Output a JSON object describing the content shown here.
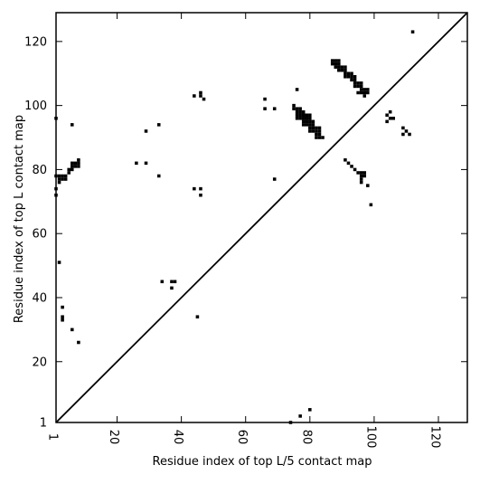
{
  "chart_data": {
    "type": "scatter",
    "title": "",
    "xlabel": "Residue index of top L/5 contact map",
    "ylabel": "Residue index of top L contact map",
    "xlim": [
      1,
      129
    ],
    "ylim": [
      1,
      129
    ],
    "xticks": [
      1,
      20,
      40,
      60,
      80,
      100,
      120
    ],
    "yticks": [
      1,
      20,
      40,
      60,
      80,
      100,
      120
    ],
    "x_tick_labels": [
      "1",
      "20",
      "40",
      "60",
      "80",
      "100",
      "120"
    ],
    "y_tick_labels": [
      "1",
      "20",
      "40",
      "60",
      "80",
      "100",
      "120"
    ],
    "diagonal": true,
    "grid": false,
    "marker": "square",
    "color": "#000000",
    "series": [
      {
        "points": [
          [
            1,
            96
          ],
          [
            1,
            78
          ],
          [
            2,
            78
          ],
          [
            2,
            77
          ],
          [
            2,
            76
          ],
          [
            3,
            78
          ],
          [
            3,
            77
          ],
          [
            4,
            78
          ],
          [
            4,
            77
          ],
          [
            1,
            74
          ],
          [
            1,
            72
          ],
          [
            2,
            51
          ],
          [
            3,
            37
          ],
          [
            3,
            34
          ],
          [
            3,
            33
          ],
          [
            5,
            79
          ],
          [
            5,
            80
          ],
          [
            6,
            80
          ],
          [
            6,
            81
          ],
          [
            6,
            82
          ],
          [
            7,
            81
          ],
          [
            7,
            82
          ],
          [
            8,
            83
          ],
          [
            8,
            82
          ],
          [
            8,
            81
          ],
          [
            6,
            94
          ],
          [
            6,
            30
          ],
          [
            8,
            26
          ],
          [
            26,
            82
          ],
          [
            29,
            82
          ],
          [
            29,
            92
          ],
          [
            33,
            94
          ],
          [
            33,
            78
          ],
          [
            34,
            45
          ],
          [
            37,
            45
          ],
          [
            38,
            45
          ],
          [
            37,
            43
          ],
          [
            44,
            103
          ],
          [
            44,
            74
          ],
          [
            45,
            34
          ],
          [
            46,
            104
          ],
          [
            46,
            103
          ],
          [
            46,
            74
          ],
          [
            46,
            72
          ],
          [
            47,
            102
          ],
          [
            66,
            102
          ],
          [
            66,
            99
          ],
          [
            69,
            99
          ],
          [
            69,
            77
          ],
          [
            74,
            1
          ],
          [
            75,
            99
          ],
          [
            75,
            100
          ],
          [
            76,
            105
          ],
          [
            76,
            99
          ],
          [
            77,
            99
          ],
          [
            76,
            98
          ],
          [
            77,
            98
          ],
          [
            78,
            98
          ],
          [
            76,
            97
          ],
          [
            77,
            97
          ],
          [
            78,
            97
          ],
          [
            79,
            97
          ],
          [
            80,
            97
          ],
          [
            76,
            96
          ],
          [
            77,
            96
          ],
          [
            78,
            96
          ],
          [
            79,
            96
          ],
          [
            80,
            96
          ],
          [
            78,
            95
          ],
          [
            79,
            95
          ],
          [
            80,
            95
          ],
          [
            81,
            95
          ],
          [
            78,
            94
          ],
          [
            79,
            94
          ],
          [
            80,
            94
          ],
          [
            81,
            94
          ],
          [
            80,
            93
          ],
          [
            81,
            93
          ],
          [
            82,
            93
          ],
          [
            83,
            93
          ],
          [
            80,
            92
          ],
          [
            81,
            92
          ],
          [
            82,
            92
          ],
          [
            83,
            92
          ],
          [
            82,
            91
          ],
          [
            83,
            91
          ],
          [
            82,
            90
          ],
          [
            83,
            90
          ],
          [
            84,
            90
          ],
          [
            77,
            3
          ],
          [
            80,
            5
          ],
          [
            87,
            114
          ],
          [
            88,
            114
          ],
          [
            89,
            114
          ],
          [
            87,
            113
          ],
          [
            88,
            113
          ],
          [
            89,
            113
          ],
          [
            88,
            112
          ],
          [
            89,
            112
          ],
          [
            90,
            112
          ],
          [
            91,
            112
          ],
          [
            89,
            111
          ],
          [
            90,
            111
          ],
          [
            91,
            111
          ],
          [
            91,
            110
          ],
          [
            92,
            110
          ],
          [
            93,
            110
          ],
          [
            91,
            109
          ],
          [
            92,
            109
          ],
          [
            93,
            109
          ],
          [
            94,
            109
          ],
          [
            93,
            108
          ],
          [
            94,
            108
          ],
          [
            94,
            107
          ],
          [
            95,
            107
          ],
          [
            96,
            107
          ],
          [
            94,
            106
          ],
          [
            95,
            106
          ],
          [
            96,
            106
          ],
          [
            96,
            105
          ],
          [
            97,
            105
          ],
          [
            98,
            105
          ],
          [
            95,
            104
          ],
          [
            96,
            104
          ],
          [
            97,
            104
          ],
          [
            98,
            104
          ],
          [
            97,
            103
          ],
          [
            91,
            83
          ],
          [
            92,
            82
          ],
          [
            93,
            81
          ],
          [
            94,
            80
          ],
          [
            95,
            79
          ],
          [
            96,
            79
          ],
          [
            97,
            79
          ],
          [
            96,
            78
          ],
          [
            97,
            78
          ],
          [
            96,
            77
          ],
          [
            96,
            76
          ],
          [
            98,
            75
          ],
          [
            99,
            69
          ],
          [
            104,
            97
          ],
          [
            105,
            98
          ],
          [
            105,
            96
          ],
          [
            106,
            96
          ],
          [
            104,
            95
          ],
          [
            109,
            93
          ],
          [
            110,
            92
          ],
          [
            109,
            91
          ],
          [
            111,
            91
          ],
          [
            112,
            123
          ]
        ]
      }
    ]
  }
}
